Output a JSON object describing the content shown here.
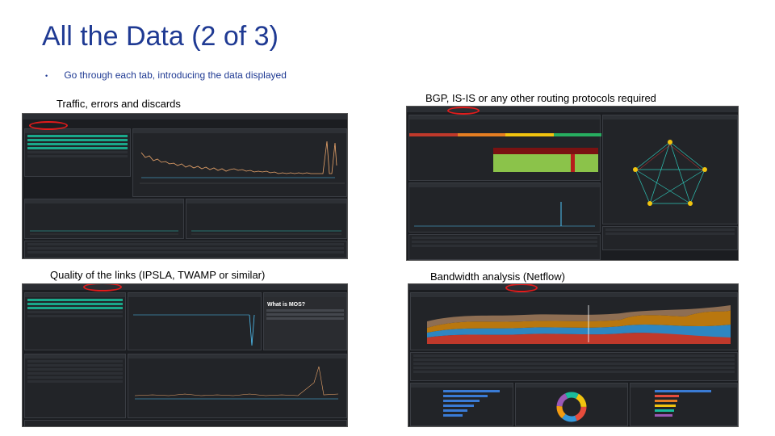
{
  "slide": {
    "title": "All the Data (2 of 3)",
    "bullet": "Go through each tab, introducing the data displayed"
  },
  "captions": {
    "traffic": "Traffic, errors and discards",
    "bgp": "BGP, IS-IS or any other routing protocols required",
    "quality": "Quality of the links (IPSLA, TWAMP or similar)",
    "bandwidth": "Bandwidth analysis (Netflow)"
  },
  "colors": {
    "title_blue": "#1f3a93",
    "dashboard_bg": "#1b1d21",
    "teal": "#1aa88a",
    "highlight_red": "#e21b1b"
  },
  "mos_panel": {
    "heading": "What is MOS?"
  },
  "icons": [
    "bullet-dot"
  ]
}
